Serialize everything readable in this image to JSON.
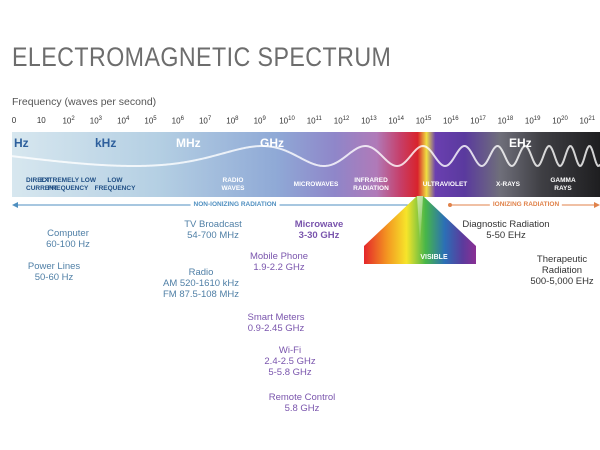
{
  "title": "ELECTROMAGNETIC SPECTRUM",
  "frequency_label": "Frequency (waves per second)",
  "ticks": [
    {
      "base": "0",
      "exp": ""
    },
    {
      "base": "10",
      "exp": ""
    },
    {
      "base": "10",
      "exp": "2"
    },
    {
      "base": "10",
      "exp": "3"
    },
    {
      "base": "10",
      "exp": "4"
    },
    {
      "base": "10",
      "exp": "5"
    },
    {
      "base": "10",
      "exp": "6"
    },
    {
      "base": "10",
      "exp": "7"
    },
    {
      "base": "10",
      "exp": "8"
    },
    {
      "base": "10",
      "exp": "9"
    },
    {
      "base": "10",
      "exp": "10"
    },
    {
      "base": "10",
      "exp": "11"
    },
    {
      "base": "10",
      "exp": "12"
    },
    {
      "base": "10",
      "exp": "13"
    },
    {
      "base": "10",
      "exp": "14"
    },
    {
      "base": "10",
      "exp": "15"
    },
    {
      "base": "10",
      "exp": "16"
    },
    {
      "base": "10",
      "exp": "17"
    },
    {
      "base": "10",
      "exp": "18"
    },
    {
      "base": "10",
      "exp": "19"
    },
    {
      "base": "10",
      "exp": "20"
    },
    {
      "base": "10",
      "exp": "21"
    }
  ],
  "units": {
    "hz": "Hz",
    "khz": "kHz",
    "mhz": "MHz",
    "ghz": "GHz",
    "ehz": "EHz"
  },
  "bands": {
    "direct_current": "DIRECT\nCURRENT",
    "extremely_low": "EXTREMELY LOW\nFREQUENCY",
    "low_frequency": "LOW\nFREQUENCY",
    "radio_waves": "RADIO\nWAVES",
    "microwaves": "MICROWAVES",
    "infrared": "INFRARED\nRADIATION",
    "ultraviolet": "ULTRAVIOLET",
    "xrays": "X-RAYS",
    "gamma": "GAMMA\nRAYS",
    "visible": "VISIBLE"
  },
  "radiation": {
    "non_ionizing": "NON-IONIZING RADIATION",
    "ionizing": "IONIZING RADIATION"
  },
  "sources": {
    "computer": {
      "name": "Computer",
      "range": "60-100 Hz"
    },
    "power_lines": {
      "name": "Power Lines",
      "range": "50-60 Hz"
    },
    "tv": {
      "name": "TV Broadcast",
      "range": "54-700 MHz"
    },
    "radio": {
      "name": "Radio",
      "am": "AM 520-1610 kHz",
      "fm": "FM 87.5-108 MHz"
    },
    "microwave": {
      "name": "Microwave",
      "range": "3-30 GHz"
    },
    "mobile": {
      "name": "Mobile Phone",
      "range": "1.9-2.2 GHz"
    },
    "smart_meters": {
      "name": "Smart Meters",
      "range": "0.9-2.45 GHz"
    },
    "wifi": {
      "name": "Wi-Fi",
      "range1": "2.4-2.5 GHz",
      "range2": "5-5.8 GHz"
    },
    "remote": {
      "name": "Remote Control",
      "range": "5.8 GHz"
    },
    "diagnostic": {
      "name": "Diagnostic Radiation",
      "range": "5-50 EHz"
    },
    "therapeutic": {
      "name1": "Therapeutic",
      "name2": "Radiation",
      "range": "500-5,000 EHz"
    }
  },
  "colors": {
    "title": "#6d6d6d",
    "non_ionizing": "#4f8fc0",
    "ionizing": "#e0824a",
    "source_blue": "#4f7fa6",
    "source_purple": "#7a55ad"
  }
}
